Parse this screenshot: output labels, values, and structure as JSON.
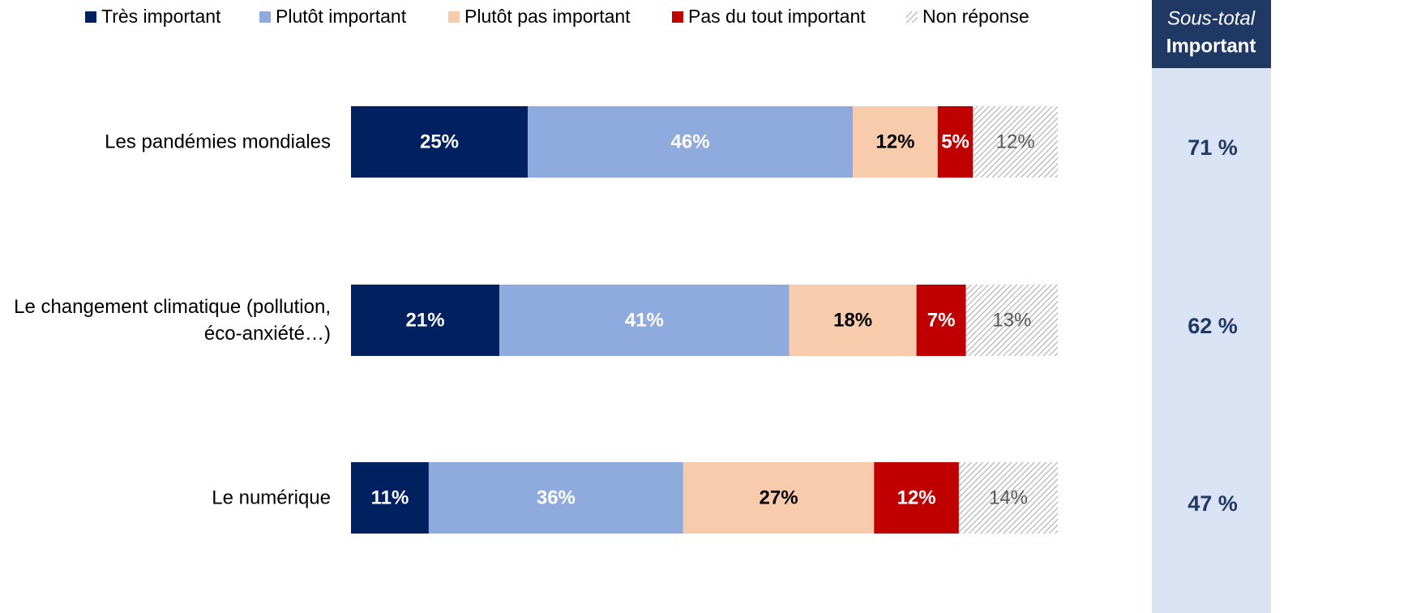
{
  "chart_data": {
    "type": "stacked-bar-horizontal",
    "categories": [
      "Les pandémies mondiales",
      "Le changement climatique (pollution,\néco-anxiété…)",
      "Le numérique"
    ],
    "xlim": [
      0,
      100
    ],
    "legend": "top",
    "series": [
      {
        "name": "Très important",
        "color": "#002060",
        "label_color": "#ffffff",
        "values": [
          25,
          21,
          11
        ],
        "value_labels": [
          "25%",
          "21%",
          "11%"
        ]
      },
      {
        "name": "Plutôt important",
        "color": "#8faadc",
        "label_color": "#ffffff",
        "values": [
          46,
          41,
          36
        ],
        "value_labels": [
          "46%",
          "41%",
          "36%"
        ]
      },
      {
        "name": "Plutôt pas important",
        "color": "#f8cbad",
        "label_color": "#000000",
        "values": [
          12,
          18,
          27
        ],
        "value_labels": [
          "12%",
          "18%",
          "27%"
        ]
      },
      {
        "name": "Pas du tout important",
        "color": "#c00000",
        "label_color": "#ffffff",
        "values": [
          5,
          7,
          12
        ],
        "value_labels": [
          "5%",
          "7%",
          "12%"
        ]
      },
      {
        "name": "Non réponse",
        "color": "hatch",
        "label_color": "#595959",
        "values": [
          12,
          13,
          14
        ],
        "value_labels": [
          "12%",
          "13%",
          "14%"
        ]
      }
    ],
    "subtotal": {
      "title_italic": "Sous-total",
      "title": "Important",
      "values": [
        71,
        62,
        47
      ],
      "value_labels": [
        "71 %",
        "62 %",
        "47 %"
      ]
    }
  }
}
